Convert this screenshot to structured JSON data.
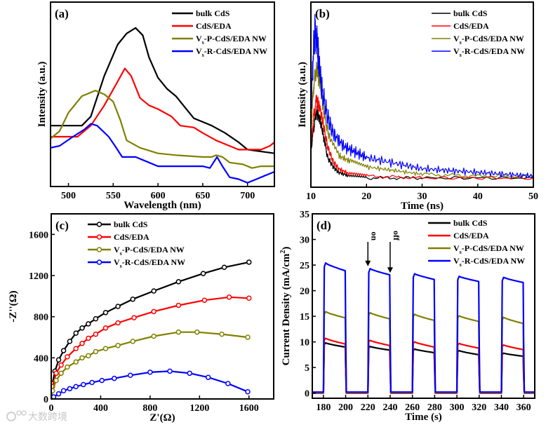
{
  "watermark": "大数跨境",
  "chart_data": [
    {
      "panel": "(a)",
      "type": "line",
      "title": "",
      "xlabel": "Wavelength (nm)",
      "ylabel": "Intensity (a.u.)",
      "xlim": [
        480,
        730
      ],
      "ylim": [
        0,
        100
      ],
      "xticks": [
        500,
        550,
        600,
        650,
        700
      ],
      "yticks": [],
      "grid": false,
      "legend": "top-right",
      "series": [
        {
          "name": "bulk CdS",
          "label_parts": [
            "bulk CdS",
            "",
            ""
          ],
          "color": "#000000",
          "x": [
            480,
            515,
            525,
            540,
            555,
            565,
            575,
            583,
            590,
            600,
            610,
            620,
            630,
            640,
            650,
            660,
            675,
            690,
            700,
            715,
            730
          ],
          "y": [
            33,
            33,
            38,
            60,
            77,
            83,
            86,
            82,
            70,
            59,
            53,
            49,
            43,
            37,
            35,
            33,
            29,
            24,
            20,
            19,
            18
          ]
        },
        {
          "name": "CdS/EDA",
          "label_parts": [
            "CdS/EDA",
            "",
            ""
          ],
          "color": "#ff0000",
          "x": [
            480,
            490,
            510,
            525,
            540,
            555,
            563,
            570,
            580,
            590,
            600,
            615,
            625,
            640,
            650,
            665,
            675,
            690,
            700,
            715,
            725,
            730
          ],
          "y": [
            27,
            27,
            27,
            33,
            44,
            57,
            64,
            60,
            48,
            44,
            42,
            38,
            33,
            32,
            29,
            25,
            23,
            20,
            20,
            20,
            22,
            24
          ]
        },
        {
          "name": "Vs-P-CdS/EDA NW",
          "label_parts": [
            "V",
            "s",
            "-P-CdS/EDA NW"
          ],
          "color": "#808000",
          "x": [
            480,
            490,
            500,
            515,
            530,
            540,
            550,
            558,
            565,
            580,
            600,
            620,
            650,
            660,
            665,
            672,
            680,
            695,
            705,
            715,
            730
          ],
          "y": [
            26,
            30,
            40,
            49,
            52,
            50,
            46,
            36,
            25,
            21,
            18,
            17,
            16,
            16,
            17,
            16,
            13,
            12,
            10,
            11,
            11
          ]
        },
        {
          "name": "Vs-R-CdS/EDA NW",
          "label_parts": [
            "V",
            "s",
            "-R-CdS/EDA NW"
          ],
          "color": "#0000ff",
          "x": [
            480,
            490,
            505,
            518,
            525,
            532,
            545,
            552,
            560,
            575,
            590,
            600,
            630,
            650,
            658,
            666,
            672,
            680,
            690,
            700,
            710,
            720,
            730
          ],
          "y": [
            21,
            22,
            27,
            31,
            34,
            33,
            27,
            22,
            16,
            16,
            13,
            11,
            11,
            11,
            10,
            16,
            11,
            5,
            4,
            2,
            4,
            6,
            8
          ]
        }
      ]
    },
    {
      "panel": "(b)",
      "type": "line",
      "title": "",
      "xlabel": "Time (ns)",
      "ylabel": "Intensity (a.u.)",
      "xlim": [
        10,
        50
      ],
      "ylim": [
        0,
        100
      ],
      "xticks": [
        10,
        20,
        30,
        40,
        50
      ],
      "yticks": [],
      "grid": false,
      "legend": "top-right",
      "series": [
        {
          "name": "bulk CdS",
          "label_parts": [
            "bulk CdS",
            "",
            ""
          ],
          "color": "#000000",
          "x": [
            10,
            10.5,
            11,
            11.7,
            12.5,
            13,
            14,
            15,
            17,
            20,
            30,
            50
          ],
          "y": [
            20,
            32,
            41,
            36,
            24,
            16,
            11,
            8,
            6,
            5,
            5,
            5
          ]
        },
        {
          "name": "CdS/EDA",
          "label_parts": [
            "CdS/EDA",
            "",
            ""
          ],
          "color": "#ff0000",
          "x": [
            10,
            10.5,
            11,
            11.7,
            12.5,
            13,
            14,
            15,
            17,
            20,
            30,
            50
          ],
          "y": [
            22,
            38,
            47,
            42,
            30,
            22,
            14,
            10,
            7,
            6,
            5,
            5
          ]
        },
        {
          "name": "Vs-P-CdS/EDA NW",
          "label_parts": [
            "V",
            "s",
            "-P-CdS/EDA NW"
          ],
          "color": "#808000",
          "x": [
            10,
            10.5,
            11,
            11.7,
            12.5,
            13.5,
            15,
            17,
            20,
            25,
            30,
            40,
            50
          ],
          "y": [
            30,
            55,
            65,
            55,
            37,
            25,
            17,
            14,
            11,
            9,
            7,
            6,
            6
          ]
        },
        {
          "name": "Vs-R-CdS/EDA NW",
          "label_parts": [
            "V",
            "s",
            "-R-CdS/EDA NW"
          ],
          "color": "#0000ff",
          "x": [
            10,
            10.4,
            10.8,
            11.3,
            12,
            13,
            14,
            16,
            18,
            20,
            25,
            30,
            35,
            40,
            45,
            50
          ],
          "y": [
            40,
            70,
            87,
            72,
            52,
            38,
            29,
            22,
            19,
            16,
            13,
            10,
            9,
            8,
            7,
            6
          ]
        }
      ]
    },
    {
      "panel": "(c)",
      "type": "scatter",
      "title": "",
      "xlabel": "Z'(Ω)",
      "ylabel": "-Z''(Ω)",
      "xlim": [
        0,
        1800
      ],
      "ylim": [
        0,
        1800
      ],
      "xticks": [
        0,
        400,
        800,
        1200,
        1600
      ],
      "yticks": [
        0,
        400,
        800,
        1200,
        1600
      ],
      "grid": false,
      "legend": "top-left",
      "series": [
        {
          "name": "bulk CdS",
          "label_parts": [
            "bulk CdS",
            "",
            ""
          ],
          "color": "#000000",
          "x": [
            0,
            10,
            30,
            60,
            100,
            150,
            200,
            250,
            300,
            360,
            440,
            540,
            660,
            830,
            1030,
            1230,
            1400,
            1600
          ],
          "y": [
            0,
            150,
            270,
            380,
            470,
            560,
            640,
            690,
            730,
            780,
            840,
            900,
            970,
            1050,
            1140,
            1220,
            1280,
            1330
          ]
        },
        {
          "name": "CdS/EDA",
          "label_parts": [
            "CdS/EDA",
            "",
            ""
          ],
          "color": "#ff0000",
          "x": [
            0,
            10,
            40,
            80,
            130,
            200,
            250,
            300,
            360,
            440,
            540,
            670,
            830,
            1030,
            1240,
            1440,
            1600
          ],
          "y": [
            0,
            120,
            250,
            330,
            410,
            490,
            540,
            590,
            630,
            690,
            740,
            790,
            850,
            910,
            960,
            990,
            980
          ]
        },
        {
          "name": "Vs-P-CdS/EDA NW",
          "label_parts": [
            "V",
            "s",
            "-P-CdS/EDA NW"
          ],
          "color": "#808000",
          "x": [
            0,
            10,
            40,
            80,
            130,
            200,
            250,
            300,
            360,
            440,
            540,
            660,
            830,
            1030,
            1180,
            1380,
            1590
          ],
          "y": [
            0,
            80,
            180,
            250,
            310,
            360,
            400,
            420,
            460,
            490,
            520,
            560,
            610,
            650,
            650,
            630,
            600
          ]
        },
        {
          "name": "Vs-R-CdS/EDA NW",
          "label_parts": [
            "V",
            "s",
            "-R-CdS/EDA NW"
          ],
          "color": "#0000ff",
          "x": [
            0,
            20,
            60,
            100,
            150,
            200,
            260,
            330,
            410,
            510,
            640,
            800,
            960,
            1120,
            1270,
            1430,
            1590
          ],
          "y": [
            0,
            20,
            50,
            80,
            100,
            120,
            140,
            160,
            180,
            200,
            230,
            260,
            270,
            250,
            210,
            150,
            70
          ]
        }
      ]
    },
    {
      "panel": "(d)",
      "type": "line",
      "title": "",
      "xlabel": "Time (s)",
      "ylabel_parts": [
        "Current Density (mA/cm",
        "2",
        ")"
      ],
      "xlim": [
        170,
        370
      ],
      "ylim": [
        -1,
        35
      ],
      "xticks": [
        180,
        200,
        220,
        240,
        260,
        280,
        300,
        320,
        340,
        360
      ],
      "yticks": [
        0,
        5,
        10,
        15,
        20,
        25,
        30,
        35
      ],
      "grid": false,
      "legend": "top-right",
      "annotations": [
        {
          "text": "on",
          "x": 220,
          "y": 24.5
        },
        {
          "text": "off",
          "x": 240,
          "y": 23.2
        }
      ],
      "on_periods": [
        [
          180,
          200
        ],
        [
          220,
          240
        ],
        [
          260,
          280
        ],
        [
          300,
          320
        ],
        [
          340,
          360
        ]
      ],
      "series": [
        {
          "name": "bulk CdS",
          "label_parts": [
            "bulk CdS",
            "",
            ""
          ],
          "color": "#000000",
          "off": 0,
          "on_values": [
            [
              9.8,
              9.0
            ],
            [
              9.1,
              8.4
            ],
            [
              8.6,
              7.9
            ],
            [
              8.3,
              7.5
            ],
            [
              7.8,
              7.2
            ]
          ]
        },
        {
          "name": "CdS/EDA",
          "label_parts": [
            "CdS/EDA",
            "",
            ""
          ],
          "color": "#ff0000",
          "off": 0,
          "on_values": [
            [
              10.7,
              9.6
            ],
            [
              10.3,
              9.3
            ],
            [
              10.0,
              9.0
            ],
            [
              9.7,
              8.8
            ],
            [
              9.4,
              8.5
            ]
          ]
        },
        {
          "name": "Vs-P-CdS/EDA NW",
          "label_parts": [
            "V",
            "s",
            "-P-CdS/EDA NW"
          ],
          "color": "#808000",
          "off": 0.1,
          "on_values": [
            [
              15.9,
              14.7
            ],
            [
              15.7,
              14.5
            ],
            [
              15.4,
              14.2
            ],
            [
              15.1,
              14.0
            ],
            [
              14.8,
              13.6
            ]
          ]
        },
        {
          "name": "Vs-R-CdS/EDA NW",
          "label_parts": [
            "V",
            "s",
            "-R-CdS/EDA NW"
          ],
          "color": "#0000ff",
          "off": 0.2,
          "on_values": [
            [
              25.4,
              23.9
            ],
            [
              24.3,
              23.1
            ],
            [
              23.3,
              22.2
            ],
            [
              22.8,
              21.8
            ],
            [
              22.6,
              21.6
            ]
          ]
        }
      ]
    }
  ]
}
